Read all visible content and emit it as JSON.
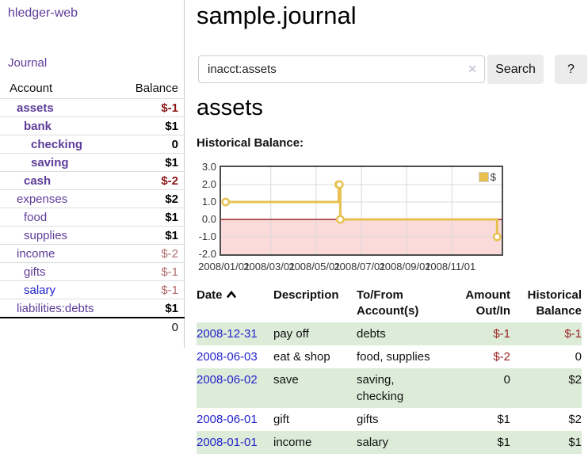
{
  "app": {
    "title": "hledger-web",
    "nav": "Journal"
  },
  "colors": {
    "purple_link": "#5e3c99",
    "blue_link": "#2222cc",
    "negative_strong": "#8b1717",
    "negative_soft": "#b06a6a",
    "table_negative": "#992121",
    "row_green": "#ddecd9",
    "series_gold": "#e7c050",
    "region_pink": "#fbdada",
    "zero_line_red": "#8b0000",
    "grid_gray": "#d9d9d9"
  },
  "sidebar": {
    "header": {
      "account": "Account",
      "balance": "Balance"
    },
    "accounts": [
      {
        "name": "assets",
        "indent": 1,
        "bold": true,
        "balance": "$-1",
        "neg": "strong"
      },
      {
        "name": "bank",
        "indent": 2,
        "bold": true,
        "balance": "$1"
      },
      {
        "name": "checking",
        "indent": 3,
        "bold": true,
        "balance": "0"
      },
      {
        "name": "saving",
        "indent": 3,
        "bold": true,
        "balance": "$1"
      },
      {
        "name": "cash",
        "indent": 2,
        "bold": true,
        "balance": "$-2",
        "neg": "strong"
      },
      {
        "name": "expenses",
        "indent": 1,
        "bold": false,
        "balance": "$2"
      },
      {
        "name": "food",
        "indent": 2,
        "bold": false,
        "balance": "$1"
      },
      {
        "name": "supplies",
        "indent": 2,
        "bold": false,
        "balance": "$1"
      },
      {
        "name": "income",
        "indent": 1,
        "bold": false,
        "balance": "$-2",
        "neg": "soft"
      },
      {
        "name": "gifts",
        "indent": 2,
        "bold": false,
        "balance": "$-1",
        "neg": "soft"
      },
      {
        "name": "salary",
        "indent": 2,
        "bold": false,
        "balance": "$-1",
        "neg": "soft",
        "link": "blue"
      },
      {
        "name": "liabilities:debts",
        "indent": 1,
        "bold": false,
        "balance": "$1"
      }
    ],
    "total": "0"
  },
  "main": {
    "title": "sample.journal",
    "account_title": "assets",
    "chart_label": "Historical Balance:"
  },
  "search": {
    "value": "inacct:assets",
    "clear_icon": "✕",
    "search_label": "Search",
    "help_label": "?"
  },
  "chart_data": {
    "type": "line",
    "line_style": "step",
    "title": "Historical Balance:",
    "legend": [
      {
        "label": "$",
        "color": "#e7c050"
      }
    ],
    "legend_position": "top-right",
    "grid": true,
    "negative_region": true,
    "x_axis": {
      "unit": "months since 2008-01-01",
      "lim": [
        -0.2,
        12.2
      ],
      "ticks": [
        {
          "x": 0,
          "label": "2008/01/01"
        },
        {
          "x": 2,
          "label": "2008/03/01"
        },
        {
          "x": 4,
          "label": "2008/05/01"
        },
        {
          "x": 6,
          "label": "2008/07/01"
        },
        {
          "x": 8,
          "label": "2008/09/01"
        },
        {
          "x": 10,
          "label": "2008/11/01"
        }
      ]
    },
    "y_axis": {
      "lim": [
        -2,
        3
      ],
      "ticks": [
        {
          "y": 3,
          "label": "3.0"
        },
        {
          "y": 2,
          "label": "2.0"
        },
        {
          "y": 1,
          "label": "1.0"
        },
        {
          "y": 0,
          "label": "0.0"
        },
        {
          "y": -1,
          "label": "-1.0"
        },
        {
          "y": -2,
          "label": "-2.0"
        }
      ]
    },
    "series": [
      {
        "name": "$",
        "points": [
          {
            "x": 0,
            "y": 1,
            "date": "2008-01-01"
          },
          {
            "x": 5.0,
            "y": 2,
            "date": "2008-06-01"
          },
          {
            "x": 5.03,
            "y": 2,
            "date": "2008-06-02"
          },
          {
            "x": 5.07,
            "y": 0,
            "date": "2008-06-03"
          },
          {
            "x": 12.0,
            "y": -1,
            "date": "2008-12-31"
          }
        ]
      }
    ]
  },
  "register": {
    "columns": [
      "Date",
      "Description",
      "To/From Account(s)",
      "Amount Out/In",
      "Historical Balance"
    ],
    "rows": [
      {
        "date": "2008-12-31",
        "description": "pay off",
        "accounts": "debts",
        "amount": "$-1",
        "amount_negative": true,
        "balance": "$-1",
        "balance_negative": true
      },
      {
        "date": "2008-06-03",
        "description": "eat & shop",
        "accounts": "food, supplies",
        "amount": "$-2",
        "amount_negative": true,
        "balance": "0",
        "balance_negative": false
      },
      {
        "date": "2008-06-02",
        "description": "save",
        "accounts": "saving, checking",
        "amount": "0",
        "amount_negative": false,
        "balance": "$2",
        "balance_negative": false
      },
      {
        "date": "2008-06-01",
        "description": "gift",
        "accounts": "gifts",
        "amount": "$1",
        "amount_negative": false,
        "balance": "$2",
        "balance_negative": false
      },
      {
        "date": "2008-01-01",
        "description": "income",
        "accounts": "salary",
        "amount": "$1",
        "amount_negative": false,
        "balance": "$1",
        "balance_negative": false
      }
    ]
  }
}
